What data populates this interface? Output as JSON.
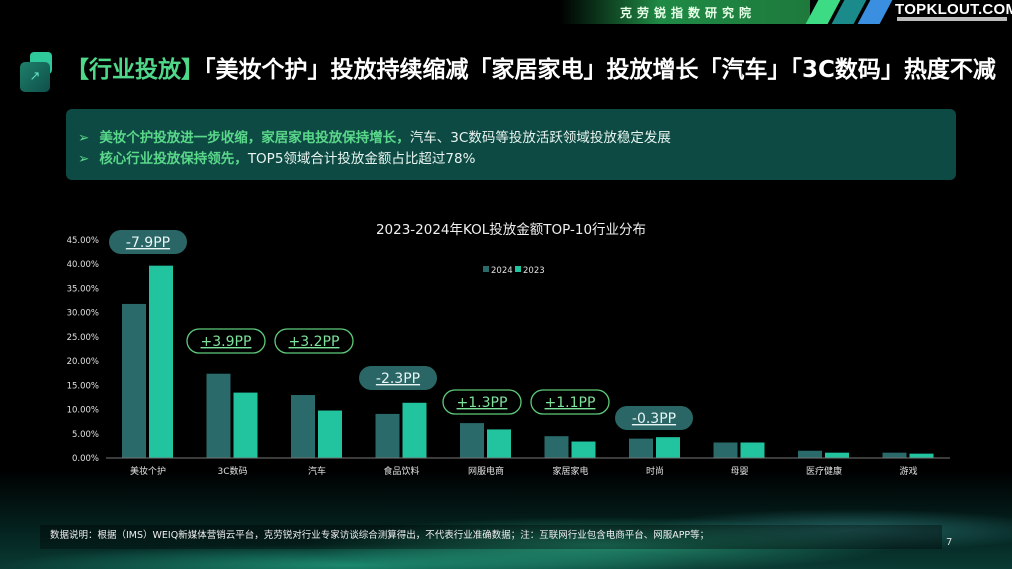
{
  "header": {
    "institute": "克劳锐指数研究院",
    "logo": "TOPKLOUT.COM",
    "stripe_colors": [
      "#3ddc84",
      "#1a8a8a",
      "#3a8fe0"
    ]
  },
  "title": {
    "icon": "arrow-up-right-icon",
    "tag": "【行业投放】",
    "text": "「美妆个护」投放持续缩减「家居家电」投放增长「汽车」「3C数码」热度不减"
  },
  "summary": [
    {
      "highlight": "美妆个护投放进一步收缩，家居家电投放保持增长，",
      "rest": "汽车、3C数码等投放活跃领域投放稳定发展"
    },
    {
      "highlight": "核心行业投放保持领先，",
      "rest": "TOP5领域合计投放金额占比超过78%"
    }
  ],
  "chart_data": {
    "type": "bar",
    "title": "2023-2024年KOL投放金额TOP-10行业分布",
    "categories": [
      "美妆个护",
      "3C数码",
      "汽车",
      "食品饮料",
      "网服电商",
      "家居家电",
      "时尚",
      "母婴",
      "医疗健康",
      "游戏"
    ],
    "series": [
      {
        "name": "2024",
        "color": "#2a6a6a",
        "values": [
          31.8,
          17.4,
          13.0,
          9.1,
          7.2,
          4.5,
          4.0,
          3.2,
          1.5,
          1.1
        ]
      },
      {
        "name": "2023",
        "color": "#22c4a0",
        "values": [
          39.7,
          13.5,
          9.8,
          11.4,
          5.9,
          3.4,
          4.3,
          3.2,
          1.1,
          0.9
        ]
      }
    ],
    "ylim": [
      0,
      45
    ],
    "yticks": [
      "0.00%",
      "5.00%",
      "10.00%",
      "15.00%",
      "20.00%",
      "25.00%",
      "30.00%",
      "35.00%",
      "40.00%",
      "45.00%"
    ],
    "xlabel": "",
    "ylabel": "",
    "grid": false,
    "legend": "top-center",
    "annotations": [
      {
        "category": "美妆个护",
        "text": "-7.9PP",
        "style": "negative"
      },
      {
        "category": "3C数码",
        "text": "+3.9PP",
        "style": "positive"
      },
      {
        "category": "汽车",
        "text": "+3.2PP",
        "style": "positive"
      },
      {
        "category": "食品饮料",
        "text": "-2.3PP",
        "style": "negative"
      },
      {
        "category": "网服电商",
        "text": "+1.3PP",
        "style": "positive"
      },
      {
        "category": "家居家电",
        "text": "+1.1PP",
        "style": "positive"
      },
      {
        "category": "时尚",
        "text": "-0.3PP",
        "style": "negative"
      }
    ],
    "annotation_colors": {
      "negative_fill": "#2b6666",
      "positive_stroke": "#5ecb7a",
      "positive_text": "#7de29a"
    }
  },
  "footer": {
    "note": "数据说明：根据（IMS）WEIQ新媒体营销云平台，克劳锐对行业专家访谈综合测算得出，不代表行业准确数据；注：互联网行业包含电商平台、网服APP等；",
    "page": "7"
  }
}
